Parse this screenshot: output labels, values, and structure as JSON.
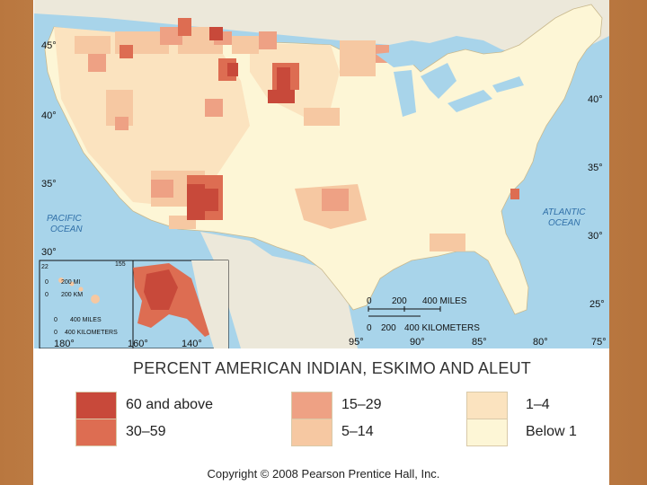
{
  "legend": {
    "title": "PERCENT AMERICAN INDIAN, ESKIMO AND ALEUT",
    "items": [
      {
        "label": "60 and above",
        "color": "#c8493a"
      },
      {
        "label": "30–59",
        "color": "#dd6d52"
      },
      {
        "label": "15–29",
        "color": "#eea184"
      },
      {
        "label": "5–14",
        "color": "#f6c8a2"
      },
      {
        "label": "1–4",
        "color": "#fbe3bf"
      },
      {
        "label": "Below 1",
        "color": "#fdf6d6"
      }
    ]
  },
  "oceans": {
    "pacific_line1": "PACIFIC",
    "pacific_line2": "OCEAN",
    "atlantic_line1": "ATLANTIC",
    "atlantic_line2": "OCEAN"
  },
  "latitudes": {
    "lat45": "45°",
    "lat40": "40°",
    "lat35": "35°",
    "lat30": "30°",
    "lat25": "25°",
    "e40": "40°",
    "e35": "35°",
    "e30": "30°"
  },
  "longitudes": {
    "l95": "95°",
    "l90": "90°",
    "l85": "85°",
    "l80": "80°",
    "l75": "75°"
  },
  "main_scale": {
    "zero": "0",
    "mid": "200",
    "miles": "400 MILES",
    "km_zero": "0",
    "km_mid": "200",
    "km": "400 KILOMETERS"
  },
  "hawaii": {
    "lat22": "22",
    "lon": "155",
    "s0a": "0",
    "s_mi": "200 MI",
    "s0b": "0",
    "s_km": "200 KM"
  },
  "alaska": {
    "s0a": "0",
    "s_mi": "400 MILES",
    "s0b": "0",
    "s_km": "400 KILOMETERS",
    "lon180a": "180°",
    "lon160": "160°",
    "lon140": "140°"
  },
  "copyright": "Copyright © 2008 Pearson Prentice Hall, Inc."
}
